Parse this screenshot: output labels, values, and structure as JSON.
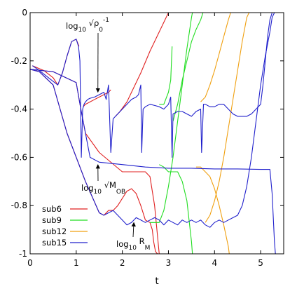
{
  "chart_data": {
    "type": "line",
    "xlabel": "t",
    "ylabel": "",
    "xlim": [
      0,
      5.5
    ],
    "ylim": [
      -1,
      0
    ],
    "xticks": [
      "0",
      "1",
      "2",
      "3",
      "4",
      "5"
    ],
    "yticks": [
      "0",
      "-0.2",
      "-0.4",
      "-0.6",
      "-0.8",
      "-1"
    ],
    "grid": false,
    "legend_position": "bottom-left",
    "annotations": [
      {
        "id": "rho",
        "text": "log10 √ρ0-1",
        "base": "log",
        "sub": "10",
        "mid": " √ρ",
        "sub2": "0",
        "sup": "-1",
        "arrow_to": [
          1.47,
          -0.33
        ]
      },
      {
        "id": "mob",
        "text": "log10 √MOB",
        "base": "log",
        "sub": "10",
        "mid": " √M",
        "sub2": "OB",
        "sup": "",
        "arrow_to": [
          1.47,
          -0.63
        ]
      },
      {
        "id": "rm",
        "text": "log10 RM",
        "base": "log",
        "sub": "10",
        "mid": " R",
        "sub2": "M",
        "sup": "",
        "arrow_to": [
          2.25,
          -0.87
        ]
      }
    ],
    "series": [
      {
        "name": "sub6",
        "color": "#e02020",
        "segments": [
          {
            "x": [
              0.05,
              0.3,
              0.5,
              0.6,
              0.7,
              0.8,
              0.9,
              1.0,
              1.06
            ],
            "y": [
              -0.22,
              -0.24,
              -0.27,
              -0.3,
              -0.25,
              -0.18,
              -0.12,
              -0.11,
              -0.14
            ]
          },
          {
            "x": [
              1.15,
              1.2,
              1.3,
              1.4,
              1.5,
              1.6,
              1.7,
              1.75
            ],
            "y": [
              -0.39,
              -0.38,
              -0.37,
              -0.36,
              -0.35,
              -0.34,
              -0.33,
              -0.32
            ]
          },
          {
            "x": [
              1.85,
              1.95,
              2.1,
              2.2,
              2.4,
              2.6,
              2.8,
              3.0
            ],
            "y": [
              -0.43,
              -0.41,
              -0.37,
              -0.33,
              -0.25,
              -0.16,
              -0.08,
              0.0
            ]
          },
          {
            "x": [
              0.0,
              0.5,
              1.0,
              1.1,
              1.2,
              1.5,
              2.0,
              2.3,
              2.5,
              2.6,
              2.7,
              2.8
            ],
            "y": [
              -0.235,
              -0.245,
              -0.29,
              -0.4,
              -0.5,
              -0.58,
              -0.66,
              -0.66,
              -0.66,
              -0.68,
              -0.8,
              -1.0
            ]
          },
          {
            "x": [
              0.0,
              0.2,
              0.5,
              0.8,
              1.2,
              1.5,
              1.6,
              1.7,
              1.8,
              1.9,
              2.0,
              2.1,
              2.2,
              2.3,
              2.4,
              2.5,
              2.6,
              2.65,
              2.68,
              2.72,
              2.76
            ],
            "y": [
              -0.235,
              -0.245,
              -0.3,
              -0.5,
              -0.7,
              -0.83,
              -0.84,
              -0.82,
              -0.82,
              -0.8,
              -0.77,
              -0.74,
              -0.73,
              -0.75,
              -0.8,
              -0.86,
              -0.87,
              -0.9,
              -0.95,
              -0.99,
              -1.0
            ]
          }
        ]
      },
      {
        "name": "sub9",
        "color": "#20dd20",
        "segments": [
          {
            "x": [
              2.8,
              2.9,
              3.0,
              3.05,
              3.08
            ],
            "y": [
              -0.38,
              -0.38,
              -0.33,
              -0.28,
              -0.14
            ]
          },
          {
            "x": [
              3.1,
              3.2,
              3.3,
              3.4,
              3.5,
              3.6,
              3.7,
              3.75
            ],
            "y": [
              -0.45,
              -0.38,
              -0.28,
              -0.2,
              -0.12,
              -0.07,
              -0.03,
              0.0
            ]
          },
          {
            "x": [
              2.8,
              2.9,
              3.0,
              3.2,
              3.3,
              3.4,
              3.5,
              3.52
            ],
            "y": [
              -0.63,
              -0.64,
              -0.66,
              -0.66,
              -0.7,
              -0.78,
              -0.95,
              -1.0
            ]
          },
          {
            "x": [
              2.6,
              2.8,
              2.9,
              3.0,
              3.1,
              3.2,
              3.3,
              3.4,
              3.5,
              3.52
            ],
            "y": [
              -0.87,
              -0.87,
              -0.82,
              -0.72,
              -0.6,
              -0.45,
              -0.3,
              -0.15,
              -0.02,
              0.0
            ]
          }
        ]
      },
      {
        "name": "sub12",
        "color": "#f0a010",
        "segments": [
          {
            "x": [
              3.7,
              3.8,
              3.9,
              4.0,
              4.1,
              4.2,
              4.3,
              4.35
            ],
            "y": [
              -0.37,
              -0.35,
              -0.3,
              -0.24,
              -0.17,
              -0.1,
              -0.03,
              0.0
            ]
          },
          {
            "x": [
              3.6,
              3.7,
              3.8,
              3.9,
              4.0,
              4.1,
              4.2,
              4.3,
              4.32
            ],
            "y": [
              -0.64,
              -0.64,
              -0.66,
              -0.68,
              -0.73,
              -0.8,
              -0.88,
              -0.97,
              -1.0
            ]
          },
          {
            "x": [
              3.8,
              3.9,
              4.0,
              4.1,
              4.2,
              4.3,
              4.4,
              4.5,
              4.6,
              4.7,
              4.75
            ],
            "y": [
              -0.87,
              -0.84,
              -0.78,
              -0.7,
              -0.6,
              -0.48,
              -0.36,
              -0.24,
              -0.12,
              -0.02,
              0.0
            ]
          }
        ]
      },
      {
        "name": "sub15",
        "color": "#2020cc",
        "segments": [
          {
            "x": [
              0.05,
              0.2,
              0.4,
              0.6,
              0.7,
              0.8,
              0.9,
              1.0,
              1.05,
              1.08,
              1.11,
              1.14,
              1.17,
              1.2,
              1.25,
              1.3,
              1.4,
              1.5,
              1.6,
              1.65,
              1.7,
              1.75,
              1.8,
              1.9,
              2.0,
              2.1,
              2.2,
              2.3,
              2.35,
              2.4,
              2.42,
              2.45,
              2.5,
              2.6,
              2.7,
              2.8,
              2.9,
              3.0,
              3.05,
              3.08,
              3.1,
              3.2,
              3.3,
              3.4,
              3.5,
              3.6,
              3.7,
              3.72,
              3.76,
              3.8,
              3.9,
              4.0,
              4.1,
              4.2,
              4.3,
              4.4,
              4.5,
              4.6,
              4.7,
              4.8,
              4.9,
              5.0,
              5.05,
              5.1,
              5.15,
              5.2,
              5.25,
              5.3
            ],
            "y": [
              -0.22,
              -0.24,
              -0.27,
              -0.3,
              -0.25,
              -0.18,
              -0.12,
              -0.11,
              -0.14,
              -0.2,
              -0.6,
              -0.4,
              -0.38,
              -0.37,
              -0.36,
              -0.355,
              -0.35,
              -0.34,
              -0.33,
              -0.36,
              -0.3,
              -0.58,
              -0.44,
              -0.42,
              -0.4,
              -0.38,
              -0.36,
              -0.35,
              -0.34,
              -0.3,
              -0.58,
              -0.4,
              -0.39,
              -0.38,
              -0.385,
              -0.39,
              -0.4,
              -0.38,
              -0.35,
              -0.6,
              -0.42,
              -0.41,
              -0.41,
              -0.42,
              -0.43,
              -0.41,
              -0.4,
              -0.58,
              -0.38,
              -0.38,
              -0.39,
              -0.39,
              -0.38,
              -0.38,
              -0.4,
              -0.42,
              -0.43,
              -0.43,
              -0.43,
              -0.42,
              -0.4,
              -0.38,
              -0.3,
              -0.2,
              -0.1,
              -0.03,
              0.0,
              0.0
            ]
          },
          {
            "x": [
              0.0,
              0.5,
              1.0,
              1.1,
              1.2,
              1.3,
              1.5,
              2.0,
              2.5,
              3.0,
              3.5,
              4.0,
              4.5,
              5.0,
              5.2,
              5.25,
              5.3,
              5.32
            ],
            "y": [
              -0.235,
              -0.245,
              -0.29,
              -0.4,
              -0.5,
              -0.6,
              -0.62,
              -0.63,
              -0.64,
              -0.645,
              -0.645,
              -0.648,
              -0.648,
              -0.65,
              -0.65,
              -0.75,
              -0.95,
              -1.0
            ]
          },
          {
            "x": [
              0.0,
              0.2,
              0.5,
              0.8,
              1.2,
              1.5,
              1.6,
              1.7,
              1.8,
              1.9,
              2.0,
              2.1,
              2.2,
              2.3,
              2.4,
              2.5,
              2.6,
              2.7,
              2.8,
              2.9,
              3.0,
              3.1,
              3.2,
              3.3,
              3.4,
              3.5,
              3.6,
              3.7,
              3.8,
              3.9,
              4.0,
              4.1,
              4.2,
              4.3,
              4.4,
              4.5,
              4.6,
              4.7,
              4.8,
              4.9,
              5.0,
              5.1,
              5.2,
              5.25,
              5.3,
              5.35
            ],
            "y": [
              -0.235,
              -0.245,
              -0.3,
              -0.5,
              -0.7,
              -0.83,
              -0.84,
              -0.83,
              -0.82,
              -0.84,
              -0.86,
              -0.88,
              -0.87,
              -0.85,
              -0.86,
              -0.87,
              -0.86,
              -0.85,
              -0.86,
              -0.88,
              -0.86,
              -0.87,
              -0.88,
              -0.86,
              -0.87,
              -0.86,
              -0.87,
              -0.86,
              -0.88,
              -0.89,
              -0.87,
              -0.86,
              -0.87,
              -0.86,
              -0.85,
              -0.84,
              -0.8,
              -0.72,
              -0.6,
              -0.45,
              -0.3,
              -0.18,
              -0.08,
              -0.02,
              0.0,
              0.0
            ]
          }
        ]
      }
    ]
  }
}
